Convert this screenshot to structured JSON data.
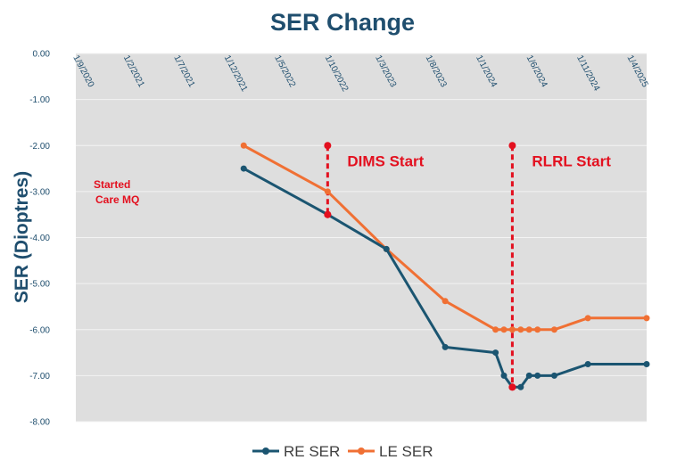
{
  "chart_data": {
    "type": "line",
    "title": "SER Change",
    "xlabel": "",
    "ylabel": "SER (Dioptres)",
    "ylim": [
      -8,
      0
    ],
    "yticks": [
      "0.00",
      "-1.00",
      "-2.00",
      "-3.00",
      "-4.00",
      "-5.00",
      "-6.00",
      "-7.00",
      "-8.00"
    ],
    "xticks": [
      "1/9/2020",
      "1/2/2021",
      "1/7/2021",
      "1/12/2021",
      "1/5/2022",
      "1/10/2022",
      "1/3/2023",
      "1/8/2023",
      "1/1/2024",
      "1/6/2024",
      "1/11/2024",
      "1/4/2025"
    ],
    "grid": true,
    "legend_position": "bottom",
    "series": [
      {
        "name": "RE SER",
        "color": "#1b5571",
        "points": [
          {
            "x": 4.0,
            "y": -2.5
          },
          {
            "x": 6.0,
            "y": -3.5
          },
          {
            "x": 7.4,
            "y": -4.25
          },
          {
            "x": 8.8,
            "y": -6.38
          },
          {
            "x": 10.0,
            "y": -6.5
          },
          {
            "x": 10.2,
            "y": -7.0
          },
          {
            "x": 10.4,
            "y": -7.25
          },
          {
            "x": 10.6,
            "y": -7.25
          },
          {
            "x": 10.8,
            "y": -7.0
          },
          {
            "x": 11.0,
            "y": -7.0
          },
          {
            "x": 11.4,
            "y": -7.0
          },
          {
            "x": 12.2,
            "y": -6.75
          },
          {
            "x": 13.6,
            "y": -6.75
          }
        ]
      },
      {
        "name": "LE SER",
        "color": "#f07034",
        "points": [
          {
            "x": 4.0,
            "y": -2.0
          },
          {
            "x": 6.0,
            "y": -3.0
          },
          {
            "x": 7.4,
            "y": -4.25
          },
          {
            "x": 8.8,
            "y": -5.38
          },
          {
            "x": 10.0,
            "y": -6.0
          },
          {
            "x": 10.2,
            "y": -6.0
          },
          {
            "x": 10.4,
            "y": -6.0
          },
          {
            "x": 10.6,
            "y": -6.0
          },
          {
            "x": 10.8,
            "y": -6.0
          },
          {
            "x": 11.0,
            "y": -6.0
          },
          {
            "x": 11.4,
            "y": -6.0
          },
          {
            "x": 12.2,
            "y": -5.75
          },
          {
            "x": 13.6,
            "y": -5.75
          }
        ]
      }
    ],
    "markers": [
      {
        "label": "DIMS Start",
        "x": 6.0,
        "y_top": -2.0,
        "y_bottom": -3.5,
        "color": "#e3101f"
      },
      {
        "label": "RLRL Start",
        "x": 10.4,
        "y_top": -2.0,
        "y_bottom": -7.25,
        "color": "#e3101f"
      }
    ],
    "annotations": [
      {
        "lines": [
          "Started",
          "Care MQ"
        ],
        "color": "#e3101f"
      }
    ]
  },
  "colors": {
    "plot_background": "#dedede",
    "gridline": "#f3f3f3",
    "axis_text": "#1f4e6e"
  }
}
